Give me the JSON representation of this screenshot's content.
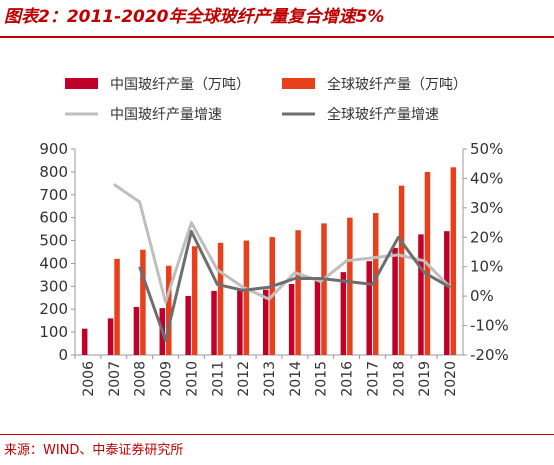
{
  "title": "图表2：2011-2020年全球玻纤产量复合增速5%",
  "source": "来源：WIND、中泰证券研究所",
  "colors": {
    "china_output": "#c0002a",
    "global_output": "#e8401a",
    "china_growth": "#bfbfbf",
    "global_growth": "#6e6e6e",
    "accent": "#c00000"
  },
  "chart_data": {
    "type": "bar",
    "categories": [
      "2006",
      "2007",
      "2008",
      "2009",
      "2010",
      "2011",
      "2012",
      "2013",
      "2014",
      "2015",
      "2016",
      "2017",
      "2018",
      "2019",
      "2020"
    ],
    "legend_position": "top",
    "grid": false,
    "y_left": {
      "ylim": [
        0,
        900
      ],
      "ticks": [
        "0",
        "100",
        "200",
        "300",
        "400",
        "500",
        "600",
        "700",
        "800",
        "900"
      ]
    },
    "y_right": {
      "ylim": [
        -20,
        50
      ],
      "ticks": [
        "-20%",
        "-10%",
        "0%",
        "10%",
        "20%",
        "30%",
        "40%",
        "50%"
      ]
    },
    "series": [
      {
        "name": "中国玻纤产量（万吨）",
        "type": "bar",
        "axis": "left",
        "values": [
          115,
          160,
          210,
          205,
          258,
          280,
          290,
          285,
          310,
          325,
          362,
          410,
          468,
          527,
          541
        ]
      },
      {
        "name": "全球玻纤产量（万吨）",
        "type": "bar",
        "axis": "left",
        "values": [
          null,
          420,
          460,
          390,
          475,
          490,
          500,
          515,
          545,
          575,
          600,
          620,
          740,
          800,
          820
        ]
      },
      {
        "name": "中国玻纤产量增速",
        "type": "line",
        "axis": "right",
        "values": [
          null,
          38,
          32,
          -2,
          25,
          9,
          3,
          -1,
          8,
          5,
          12,
          13,
          14,
          12,
          3
        ]
      },
      {
        "name": "全球玻纤产量增速",
        "type": "line",
        "axis": "right",
        "values": [
          null,
          null,
          10,
          -15,
          22,
          4,
          2,
          3,
          6,
          6,
          5,
          4,
          20,
          8,
          3
        ]
      }
    ]
  }
}
